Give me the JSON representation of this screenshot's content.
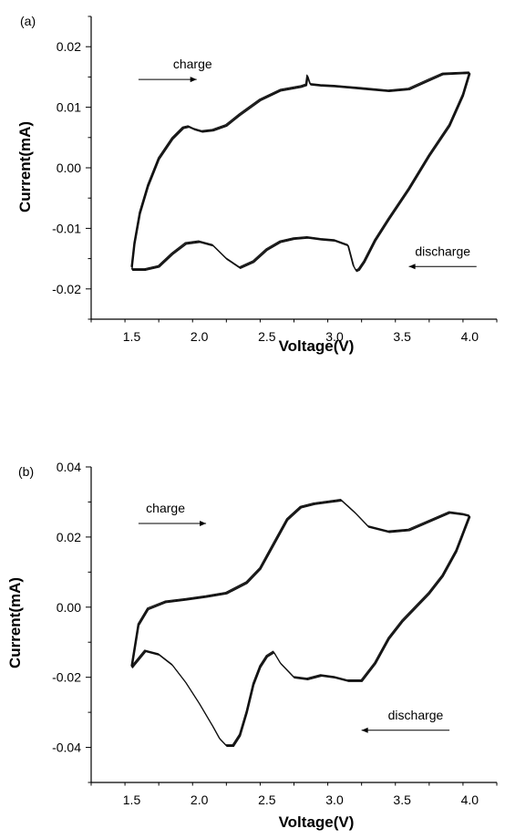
{
  "chart_data": [
    {
      "type": "line",
      "panel_label": "(a)",
      "xlabel": "Voltage(V)",
      "ylabel": "Current(mA)",
      "xlim": [
        1.2,
        4.2
      ],
      "ylim": [
        -0.025,
        0.025
      ],
      "xticks": [
        1.5,
        2.0,
        2.5,
        3.0,
        3.5,
        4.0
      ],
      "xtick_labels": [
        "1.5",
        "2.0",
        "2.5",
        "3.0",
        "3.5",
        "4.0"
      ],
      "yticks": [
        -0.02,
        -0.01,
        0.0,
        0.01,
        0.02
      ],
      "ytick_labels": [
        "-0.02",
        "-0.01",
        "0.00",
        "0.01",
        "0.02"
      ],
      "grid": false,
      "annotations": [
        {
          "text": "charge",
          "direction": "right",
          "x": 1.95,
          "y": 0.0164,
          "arrow_from": 1.55,
          "arrow_to": 1.98
        },
        {
          "text": "discharge",
          "direction": "left",
          "x": 3.8,
          "y": -0.0145,
          "arrow_from": 4.05,
          "arrow_to": 3.55
        }
      ],
      "series": [
        {
          "x": [
            1.5,
            1.52,
            1.56,
            1.62,
            1.7,
            1.8,
            1.88,
            1.92,
            1.96,
            2.02,
            2.1,
            2.2,
            2.3,
            2.45,
            2.6,
            2.75,
            2.79,
            2.8,
            2.82,
            2.9,
            3.0,
            3.2,
            3.4,
            3.55,
            3.7,
            3.8,
            3.9,
            4.0
          ],
          "y": [
            -0.0165,
            -0.0125,
            -0.0075,
            -0.003,
            0.0015,
            0.0048,
            0.0066,
            0.0068,
            0.0064,
            0.006,
            0.0062,
            0.007,
            0.0088,
            0.0112,
            0.0128,
            0.0134,
            0.0137,
            0.0152,
            0.0138,
            0.0136,
            0.0135,
            0.0131,
            0.0127,
            0.013,
            0.0145,
            0.0155,
            0.0156,
            0.0157
          ]
        },
        {
          "x": [
            4.0,
            3.95,
            3.85,
            3.7,
            3.55,
            3.4,
            3.3,
            3.22,
            3.18,
            3.16,
            3.14,
            3.1,
            3.0,
            2.9,
            2.8,
            2.7,
            2.6,
            2.5,
            2.4,
            2.3,
            2.2,
            2.1,
            2.0,
            1.9,
            1.8,
            1.7,
            1.6,
            1.5
          ],
          "y": [
            0.0157,
            0.012,
            0.007,
            0.002,
            -0.0035,
            -0.0085,
            -0.012,
            -0.0155,
            -0.0168,
            -0.017,
            -0.0162,
            -0.0128,
            -0.012,
            -0.0118,
            -0.0115,
            -0.0117,
            -0.0122,
            -0.0135,
            -0.0155,
            -0.0165,
            -0.015,
            -0.0128,
            -0.0122,
            -0.0125,
            -0.0142,
            -0.0163,
            -0.0168,
            -0.0168
          ]
        }
      ]
    },
    {
      "type": "line",
      "panel_label": "(b)",
      "xlabel": "Voltage(V)",
      "ylabel": "Current(mA)",
      "xlim": [
        1.2,
        4.2
      ],
      "ylim": [
        -0.05,
        0.04
      ],
      "xticks": [
        1.5,
        2.0,
        2.5,
        3.0,
        3.5,
        4.0
      ],
      "xtick_labels": [
        "1.5",
        "2.0",
        "2.5",
        "3.0",
        "3.5",
        "4.0"
      ],
      "yticks": [
        -0.04,
        -0.02,
        0.0,
        0.02,
        0.04
      ],
      "ytick_labels": [
        "-0.04",
        "-0.02",
        "0.00",
        "0.02",
        "0.04"
      ],
      "grid": false,
      "annotations": [
        {
          "text": "charge",
          "direction": "right",
          "x": 1.75,
          "y": 0.027,
          "arrow_from": 1.55,
          "arrow_to": 2.05
        },
        {
          "text": "discharge",
          "direction": "left",
          "x": 3.6,
          "y": -0.032,
          "arrow_from": 3.85,
          "arrow_to": 3.2
        }
      ],
      "series": [
        {
          "x": [
            1.5,
            1.55,
            1.62,
            1.75,
            1.9,
            2.05,
            2.2,
            2.35,
            2.45,
            2.55,
            2.65,
            2.75,
            2.85,
            2.95,
            3.05,
            3.15,
            3.25,
            3.4,
            3.55,
            3.7,
            3.85,
            3.95,
            4.0
          ],
          "y": [
            -0.017,
            -0.005,
            -0.0005,
            0.0015,
            0.0022,
            0.003,
            0.004,
            0.007,
            0.011,
            0.018,
            0.025,
            0.0285,
            0.0295,
            0.03,
            0.0305,
            0.027,
            0.023,
            0.0215,
            0.022,
            0.0245,
            0.027,
            0.0265,
            0.026
          ]
        },
        {
          "x": [
            4.0,
            3.9,
            3.8,
            3.7,
            3.6,
            3.5,
            3.4,
            3.3,
            3.2,
            3.1,
            3.0,
            2.9,
            2.8,
            2.7,
            2.6,
            2.55,
            2.5,
            2.45,
            2.4,
            2.35,
            2.3,
            2.25,
            2.2,
            2.15,
            2.1,
            2.0,
            1.9,
            1.8,
            1.7,
            1.6,
            1.5
          ],
          "y": [
            0.026,
            0.016,
            0.009,
            0.004,
            0.0,
            -0.004,
            -0.009,
            -0.016,
            -0.021,
            -0.021,
            -0.02,
            -0.0195,
            -0.0205,
            -0.02,
            -0.016,
            -0.0128,
            -0.014,
            -0.017,
            -0.022,
            -0.03,
            -0.0365,
            -0.0395,
            -0.0395,
            -0.0375,
            -0.034,
            -0.0275,
            -0.0215,
            -0.0165,
            -0.0135,
            -0.0125,
            -0.0172
          ]
        }
      ]
    }
  ]
}
